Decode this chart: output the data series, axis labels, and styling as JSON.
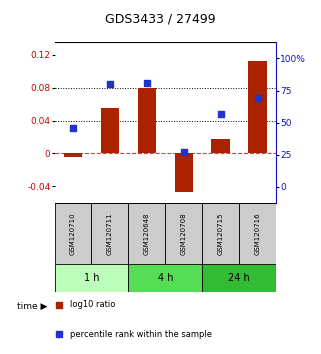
{
  "title": "GDS3433 / 27499",
  "samples": [
    "GSM120710",
    "GSM120711",
    "GSM120648",
    "GSM120708",
    "GSM120715",
    "GSM120716"
  ],
  "log10_ratio": [
    -0.005,
    0.055,
    0.08,
    -0.047,
    0.018,
    0.112
  ],
  "percentile_rank": [
    46,
    80,
    81,
    27,
    57,
    69
  ],
  "ylim_left": [
    -0.06,
    0.135
  ],
  "ylim_right": [
    -12.5,
    112.5
  ],
  "yticks_left": [
    -0.04,
    0,
    0.04,
    0.08,
    0.12
  ],
  "ytick_labels_left": [
    "-0.04",
    "0",
    "0.04",
    "0.08",
    "0.12"
  ],
  "yticks_right": [
    0,
    25,
    50,
    75,
    100
  ],
  "ytick_labels_right": [
    "0",
    "25",
    "50",
    "75",
    "100%"
  ],
  "hlines": [
    0.04,
    0.08
  ],
  "bar_color": "#aa2200",
  "dot_color": "#2233cc",
  "bar_width": 0.5,
  "dot_size": 22,
  "zero_line_color": "#cc4444",
  "label_color_left": "#cc0000",
  "label_color_right": "#1111bb",
  "sample_box_color": "#cccccc",
  "group_colors": [
    "#bbffbb",
    "#55dd55",
    "#33bb33"
  ],
  "group_defs": [
    [
      0,
      1,
      "1 h"
    ],
    [
      2,
      3,
      "4 h"
    ],
    [
      4,
      5,
      "24 h"
    ]
  ],
  "legend_items": [
    "log10 ratio",
    "percentile rank within the sample"
  ],
  "legend_colors": [
    "#aa2200",
    "#2233cc"
  ]
}
